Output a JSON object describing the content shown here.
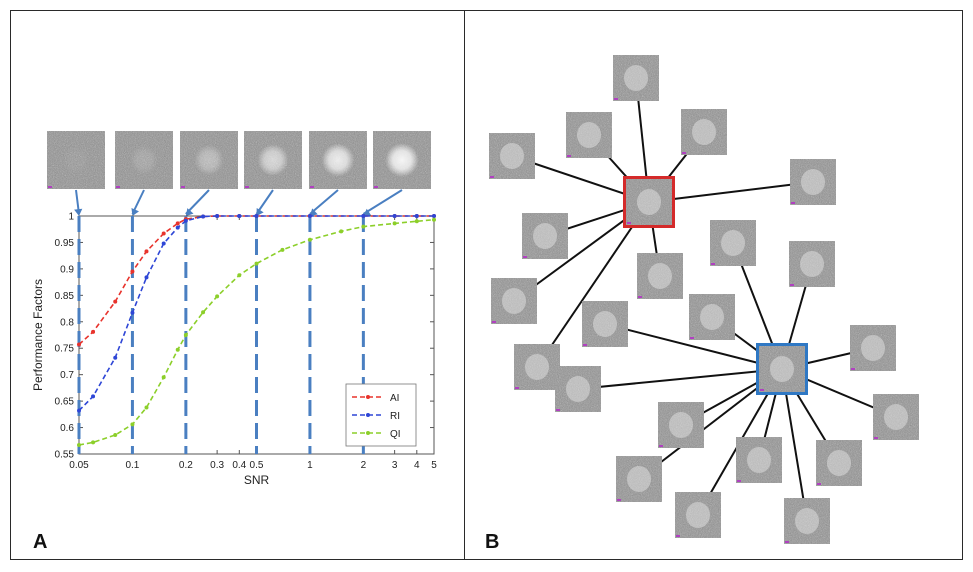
{
  "panel_a": {
    "letter": "A"
  },
  "panel_b": {
    "letter": "B"
  },
  "colors": {
    "AI": "#e8332c",
    "RI": "#2e46d6",
    "QI": "#8ccf2a",
    "snr_marker": "#4a7fc1",
    "reference_red": "#d42a2a",
    "reference_blue": "#2f78c4"
  },
  "chart_data": {
    "type": "line",
    "title": "",
    "xlabel": "SNR",
    "ylabel": "Performance Factors",
    "xscale": "log",
    "xlim": [
      0.05,
      5
    ],
    "ylim": [
      0.55,
      1.0
    ],
    "grid": false,
    "legend_position": "bottom-right",
    "xticks": [
      {
        "value": 0.05,
        "label": "0.05"
      },
      {
        "value": 0.1,
        "label": "0.1"
      },
      {
        "value": 0.2,
        "label": "0.2"
      },
      {
        "value": 0.3,
        "label": "0.3"
      },
      {
        "value": 0.4,
        "label": "0.4"
      },
      {
        "value": 0.5,
        "label": "0.5"
      },
      {
        "value": 1,
        "label": "1"
      },
      {
        "value": 2,
        "label": "2"
      },
      {
        "value": 3,
        "label": "3"
      },
      {
        "value": 4,
        "label": "4"
      },
      {
        "value": 5,
        "label": "5"
      }
    ],
    "yticks": [
      {
        "value": 0.55,
        "label": "0.55"
      },
      {
        "value": 0.6,
        "label": "0.6"
      },
      {
        "value": 0.65,
        "label": "0.65"
      },
      {
        "value": 0.7,
        "label": "0.7"
      },
      {
        "value": 0.75,
        "label": "0.75"
      },
      {
        "value": 0.8,
        "label": "0.8"
      },
      {
        "value": 0.85,
        "label": "0.85"
      },
      {
        "value": 0.9,
        "label": "0.9"
      },
      {
        "value": 0.95,
        "label": "0.95"
      },
      {
        "value": 1,
        "label": "1"
      }
    ],
    "series": [
      {
        "name": "AI",
        "color": "#e8332c",
        "x": [
          0.05,
          0.06,
          0.08,
          0.1,
          0.12,
          0.15,
          0.18,
          0.2,
          0.25,
          0.3,
          0.4,
          0.5,
          1,
          2,
          3,
          4,
          5
        ],
        "y": [
          0.757,
          0.781,
          0.838,
          0.895,
          0.933,
          0.967,
          0.986,
          0.994,
          0.999,
          1.0,
          1.0,
          1.0,
          1.0,
          1.0,
          1.0,
          1.0,
          1.0
        ]
      },
      {
        "name": "RI",
        "color": "#2e46d6",
        "x": [
          0.05,
          0.06,
          0.08,
          0.1,
          0.12,
          0.15,
          0.18,
          0.2,
          0.25,
          0.3,
          0.4,
          0.5,
          1,
          2,
          3,
          4,
          5
        ],
        "y": [
          0.632,
          0.659,
          0.732,
          0.817,
          0.884,
          0.948,
          0.978,
          0.991,
          0.999,
          1.0,
          1.0,
          1.0,
          1.0,
          1.0,
          1.0,
          1.0,
          1.0
        ]
      },
      {
        "name": "QI",
        "color": "#8ccf2a",
        "x": [
          0.05,
          0.06,
          0.08,
          0.1,
          0.12,
          0.15,
          0.18,
          0.2,
          0.25,
          0.3,
          0.4,
          0.5,
          0.7,
          1,
          1.5,
          2,
          3,
          4,
          5
        ],
        "y": [
          0.567,
          0.572,
          0.586,
          0.606,
          0.638,
          0.695,
          0.747,
          0.775,
          0.818,
          0.848,
          0.888,
          0.91,
          0.936,
          0.955,
          0.971,
          0.98,
          0.986,
          0.99,
          0.993
        ]
      }
    ],
    "snr_markers": [
      0.05,
      0.1,
      0.2,
      0.5,
      1,
      2
    ],
    "snr_thumbnail_levels": [
      0.05,
      0.15,
      0.35,
      0.6,
      0.8,
      0.9
    ]
  }
}
